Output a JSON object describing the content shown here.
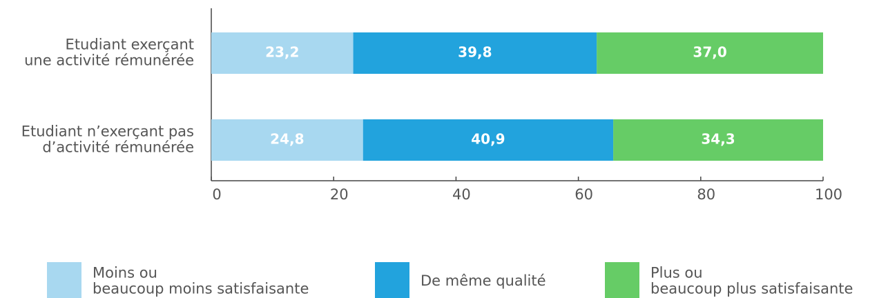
{
  "chart_data": {
    "type": "stacked_barh",
    "categories": [
      "Etudiant exerçant\nune activité rémunérée",
      "Etudiant n’exerçant pas\nd’activité rémunérée"
    ],
    "series": [
      {
        "name": "Moins ou\nbeaucoup moins satisfaisante",
        "color": "#a8d8f0",
        "values": [
          23.2,
          24.8
        ],
        "value_labels": [
          "23,2",
          "24,8"
        ]
      },
      {
        "name": "De même qualité",
        "color": "#22a3dd",
        "values": [
          39.8,
          40.9
        ],
        "value_labels": [
          "39,8",
          "40,9"
        ]
      },
      {
        "name": "Plus ou\nbeaucoup plus satisfaisante",
        "color": "#66cc66",
        "values": [
          37.0,
          34.3
        ],
        "value_labels": [
          "37,0",
          "34,3"
        ]
      }
    ],
    "xlim": [
      0,
      100
    ],
    "xticks": [
      0,
      20,
      40,
      60,
      80,
      100
    ],
    "legend": "bottom"
  }
}
